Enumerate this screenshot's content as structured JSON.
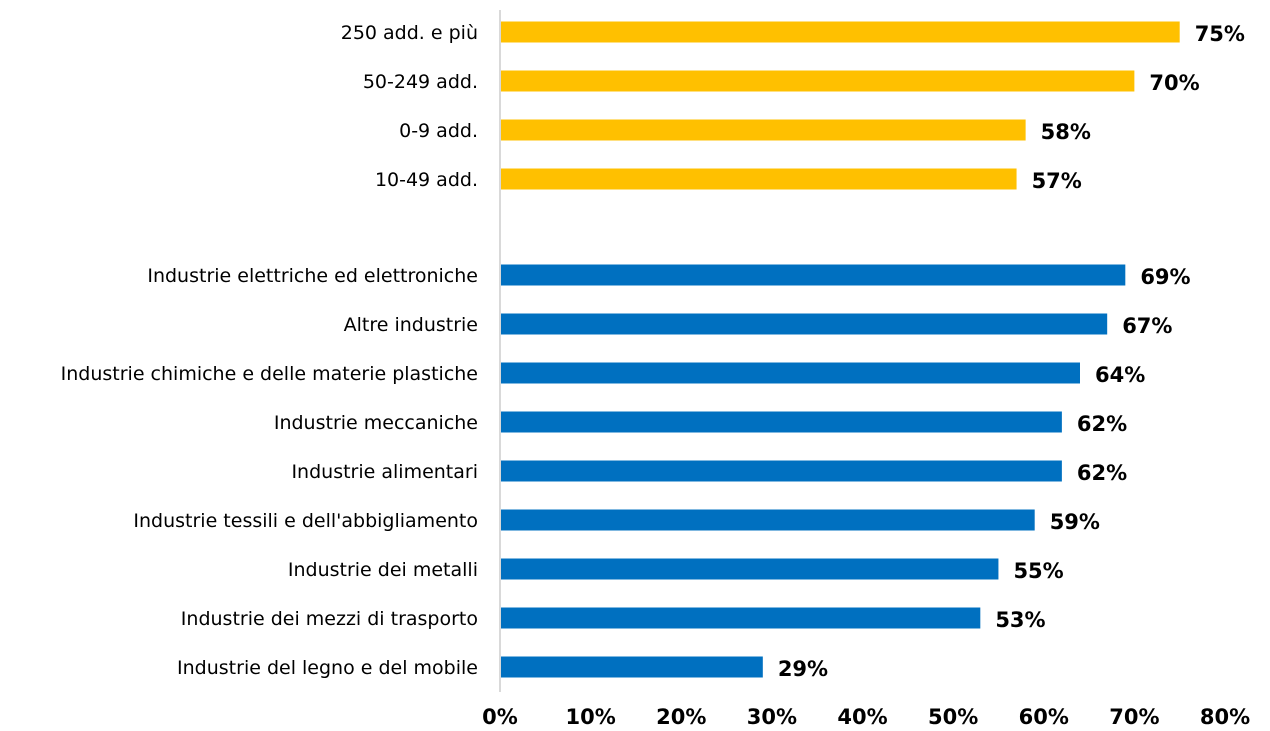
{
  "chart_data": {
    "type": "bar",
    "orientation": "horizontal",
    "xlim": [
      0,
      80
    ],
    "tick_step": 10,
    "tick_format": "percent",
    "grid": false,
    "legend": "none",
    "groups": [
      {
        "color": "#FFC000",
        "categories": [
          "250 add. e più",
          "50-249 add.",
          "0-9 add.",
          "10-49 add."
        ],
        "values": [
          75,
          70,
          58,
          57
        ],
        "value_labels": [
          "75%",
          "70%",
          "58%",
          "57%"
        ]
      },
      {
        "color": "#0070C0",
        "categories": [
          "Industrie elettriche ed elettroniche",
          "Altre industrie",
          "Industrie chimiche e delle materie plastiche",
          "Industrie meccaniche",
          "Industrie alimentari",
          "Industrie tessili e dell'abbigliamento",
          "Industrie dei metalli",
          "Industrie dei mezzi di trasporto",
          "Industrie del legno e del mobile"
        ],
        "values": [
          69,
          67,
          64,
          62,
          62,
          59,
          55,
          53,
          29
        ],
        "value_labels": [
          "69%",
          "67%",
          "64%",
          "62%",
          "62%",
          "59%",
          "55%",
          "53%",
          "29%"
        ]
      }
    ],
    "tick_labels": [
      "0%",
      "10%",
      "20%",
      "30%",
      "40%",
      "50%",
      "60%",
      "70%",
      "80%"
    ]
  }
}
